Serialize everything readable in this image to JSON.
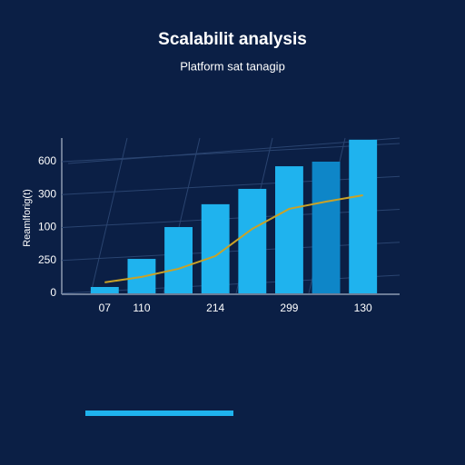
{
  "chart_data": {
    "type": "bar",
    "title": "Scalabilit analysis",
    "subtitle": "Platform sat tanagip",
    "y_label": "Reamlforig(t)",
    "categories": [
      "07",
      "110",
      null,
      "214",
      null,
      "299",
      null,
      "130"
    ],
    "values": [
      29,
      157,
      302,
      406,
      476,
      579,
      600,
      700
    ],
    "colors": [
      "#1fb3ee",
      "#1fb3ee",
      "#1fb3ee",
      "#1fb3ee",
      "#1fb3ee",
      "#1fb3ee",
      "#0e86c8",
      "#1fb3ee"
    ],
    "line": {
      "color": "#c9a227",
      "values": [
        50,
        75,
        112,
        170,
        294,
        385,
        418,
        447
      ]
    },
    "ylim": [
      0,
      710
    ],
    "yticks": [
      0,
      {
        "value": 150,
        "label": "250"
      },
      {
        "value": 300,
        "label": "100"
      },
      {
        "value": 450,
        "label": "300"
      },
      600
    ],
    "grid": true
  }
}
